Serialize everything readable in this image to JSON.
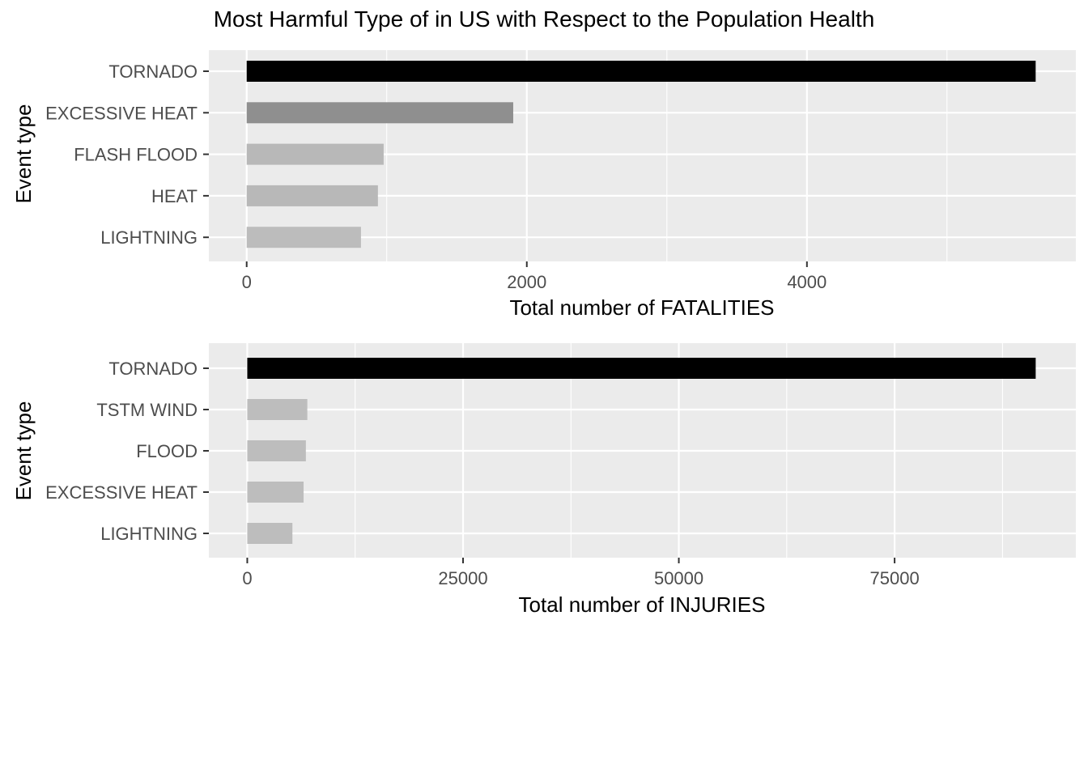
{
  "title": "Most Harmful Type of in US with Respect to the Population Health",
  "chart_data": [
    {
      "type": "bar",
      "orientation": "horizontal",
      "categories": [
        "TORNADO",
        "EXCESSIVE HEAT",
        "FLASH FLOOD",
        "HEAT",
        "LIGHTNING"
      ],
      "values": [
        5633,
        1903,
        978,
        937,
        816
      ],
      "xlabel": "Total number of FATALITIES",
      "ylabel": "Event type",
      "xticks": [
        0,
        2000,
        4000
      ],
      "xlim": [
        -270,
        5920
      ],
      "bar_colors": [
        "#000000",
        "#8f8f8f",
        "#b8b8b8",
        "#b8b8b8",
        "#bcbcbc"
      ],
      "grid": true,
      "background": "#ebebeb",
      "legend": "none"
    },
    {
      "type": "bar",
      "orientation": "horizontal",
      "categories": [
        "TORNADO",
        "TSTM WIND",
        "FLOOD",
        "EXCESSIVE HEAT",
        "LIGHTNING"
      ],
      "values": [
        91346,
        6957,
        6789,
        6525,
        5230
      ],
      "xlabel": "Total number of INJURIES",
      "ylabel": "Event type",
      "xticks": [
        0,
        25000,
        50000,
        75000
      ],
      "xlim": [
        -4450,
        96000
      ],
      "bar_colors": [
        "#000000",
        "#bdbdbd",
        "#bdbdbd",
        "#bdbdbd",
        "#bdbdbd"
      ],
      "grid": true,
      "background": "#ebebeb",
      "legend": "none"
    }
  ]
}
